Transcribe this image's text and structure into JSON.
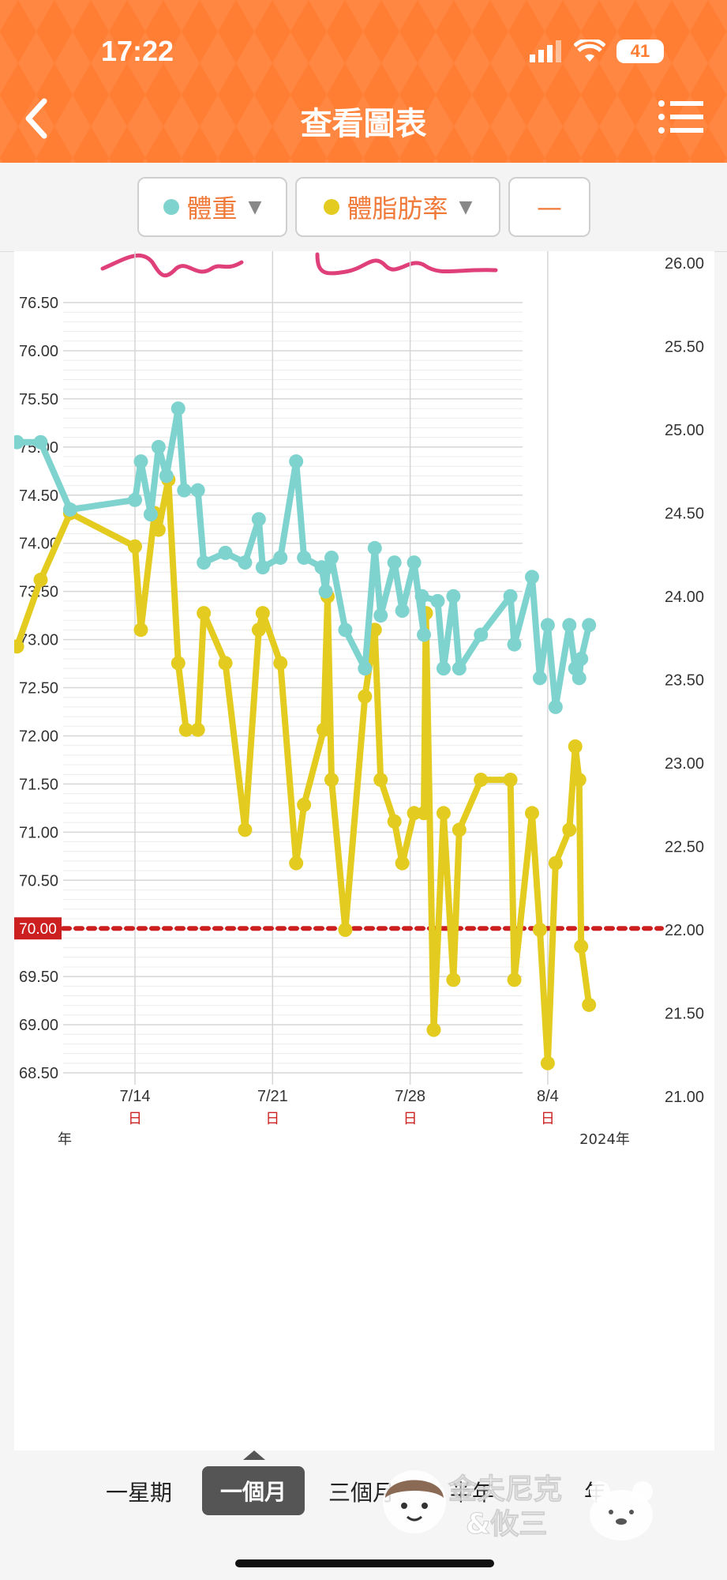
{
  "status": {
    "time": "17:22",
    "battery": "41"
  },
  "header": {
    "title": "查看圖表"
  },
  "selectors": {
    "series1": "體重",
    "series2": "體脂肪率",
    "series3": "—"
  },
  "colors": {
    "weight": "#7fd3cf",
    "fat": "#e3cc1f",
    "target": "#cc1f1f",
    "accent": "#ff7e33"
  },
  "tabs": {
    "week": "一星期",
    "month": "一個月",
    "three": "三個月",
    "half": "半年",
    "year": "年"
  },
  "watermark": {
    "line1": "金夫尼克",
    "line2": "&攸三"
  },
  "chart_data": {
    "type": "line",
    "left_axis": {
      "ticks": [
        "76.50",
        "76.00",
        "75.50",
        "75.00",
        "74.50",
        "74.00",
        "73.50",
        "73.00",
        "72.50",
        "72.00",
        "71.50",
        "71.00",
        "70.50",
        "70.00",
        "69.50",
        "69.00",
        "68.50"
      ],
      "min": 68.5,
      "max": 76.5
    },
    "right_axis": {
      "ticks": [
        "26.00",
        "25.50",
        "25.00",
        "24.50",
        "24.00",
        "23.50",
        "23.00",
        "22.50",
        "22.00",
        "21.50",
        "21.00"
      ],
      "min": 21.0,
      "max": 26.0
    },
    "x_axis": {
      "labels": [
        "7/14",
        "7/21",
        "7/28",
        "8/4"
      ],
      "day_labels": [
        "日",
        "日",
        "日",
        "日"
      ],
      "year_left": "年",
      "year_right": "2024年",
      "label_days": [
        14,
        21,
        28,
        35
      ]
    },
    "target_line": {
      "value": 70.0,
      "label": "70.00"
    },
    "series": [
      {
        "name": "體重",
        "axis": "left",
        "points": [
          [
            8.0,
            75.05
          ],
          [
            9.2,
            75.05
          ],
          [
            10.7,
            74.35
          ],
          [
            14.0,
            74.45
          ],
          [
            14.3,
            74.85
          ],
          [
            14.8,
            74.3
          ],
          [
            15.2,
            75.0
          ],
          [
            15.6,
            74.7
          ],
          [
            16.2,
            75.4
          ],
          [
            16.5,
            74.55
          ],
          [
            17.2,
            74.55
          ],
          [
            17.5,
            73.8
          ],
          [
            18.6,
            73.9
          ],
          [
            19.6,
            73.8
          ],
          [
            20.3,
            74.25
          ],
          [
            20.5,
            73.75
          ],
          [
            21.4,
            73.85
          ],
          [
            22.2,
            74.85
          ],
          [
            22.6,
            73.85
          ],
          [
            23.5,
            73.75
          ],
          [
            23.7,
            73.5
          ],
          [
            23.8,
            73.75
          ],
          [
            24.0,
            73.85
          ],
          [
            24.7,
            73.1
          ],
          [
            25.7,
            72.7
          ],
          [
            26.2,
            73.95
          ],
          [
            26.5,
            73.25
          ],
          [
            27.2,
            73.8
          ],
          [
            27.6,
            73.3
          ],
          [
            28.2,
            73.8
          ],
          [
            28.7,
            73.05
          ],
          [
            28.6,
            73.45
          ],
          [
            29.4,
            73.4
          ],
          [
            29.7,
            72.7
          ],
          [
            30.2,
            73.45
          ],
          [
            30.5,
            72.7
          ],
          [
            31.6,
            73.05
          ],
          [
            33.1,
            73.45
          ],
          [
            33.3,
            72.95
          ],
          [
            34.2,
            73.65
          ],
          [
            34.6,
            72.6
          ],
          [
            35.0,
            73.15
          ],
          [
            35.4,
            72.3
          ],
          [
            36.1,
            73.15
          ],
          [
            36.4,
            72.7
          ],
          [
            36.6,
            72.6
          ],
          [
            36.7,
            72.8
          ],
          [
            37.1,
            73.15
          ]
        ]
      },
      {
        "name": "體脂肪率",
        "axis": "right",
        "points": [
          [
            8.0,
            23.7
          ],
          [
            9.2,
            24.1
          ],
          [
            10.7,
            24.5
          ],
          [
            14.0,
            24.3
          ],
          [
            14.3,
            23.8
          ],
          [
            15.0,
            24.5
          ],
          [
            15.2,
            24.4
          ],
          [
            15.7,
            24.7
          ],
          [
            16.2,
            23.6
          ],
          [
            16.6,
            23.2
          ],
          [
            17.2,
            23.2
          ],
          [
            17.5,
            23.9
          ],
          [
            18.6,
            23.6
          ],
          [
            19.6,
            22.6
          ],
          [
            20.3,
            23.8
          ],
          [
            20.5,
            23.9
          ],
          [
            21.4,
            23.6
          ],
          [
            22.2,
            22.4
          ],
          [
            22.6,
            22.75
          ],
          [
            23.6,
            23.2
          ],
          [
            23.8,
            24.0
          ],
          [
            24.0,
            22.9
          ],
          [
            24.7,
            22.0
          ],
          [
            25.7,
            23.4
          ],
          [
            26.2,
            23.8
          ],
          [
            26.5,
            22.9
          ],
          [
            27.2,
            22.65
          ],
          [
            27.6,
            22.4
          ],
          [
            28.2,
            22.7
          ],
          [
            28.7,
            22.7
          ],
          [
            28.8,
            23.9
          ],
          [
            29.2,
            21.4
          ],
          [
            29.7,
            22.7
          ],
          [
            30.2,
            21.7
          ],
          [
            30.5,
            22.6
          ],
          [
            31.6,
            22.9
          ],
          [
            33.1,
            22.9
          ],
          [
            33.3,
            21.7
          ],
          [
            34.2,
            22.7
          ],
          [
            34.6,
            22.0
          ],
          [
            35.0,
            21.2
          ],
          [
            35.4,
            22.4
          ],
          [
            36.1,
            22.6
          ],
          [
            36.4,
            23.1
          ],
          [
            36.6,
            22.9
          ],
          [
            36.7,
            21.9
          ],
          [
            37.1,
            21.55
          ]
        ]
      }
    ]
  }
}
